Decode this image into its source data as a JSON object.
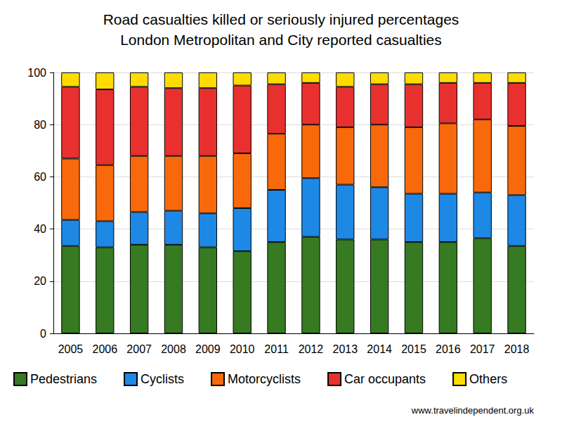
{
  "chart_data": {
    "type": "bar",
    "title": "Road casualties killed or seriously injured percentages",
    "subtitle": "London Metropolitan and City reported casualties",
    "annotations": [
      "www.travelindependent.org.uk"
    ],
    "categories": [
      "2005",
      "2006",
      "2007",
      "2008",
      "2009",
      "2010",
      "2011",
      "2012",
      "2013",
      "2014",
      "2015",
      "2016",
      "2017",
      "2018"
    ],
    "series": [
      {
        "name": "Pedestrians",
        "color": "#367a22",
        "values": [
          33.5,
          33,
          34,
          34,
          33,
          31.5,
          35,
          37,
          36,
          36,
          35,
          35,
          36.5,
          33.5
        ]
      },
      {
        "name": "Cyclists",
        "color": "#1e88e5",
        "values": [
          10,
          10,
          12.5,
          13,
          13,
          16.5,
          20,
          22.5,
          21,
          20,
          18.5,
          18.5,
          17.5,
          19.5
        ]
      },
      {
        "name": "Motorcyclists",
        "color": "#f8690c",
        "values": [
          23.5,
          21.5,
          21.5,
          21,
          22,
          21,
          21.5,
          20.5,
          22,
          24,
          25.5,
          27,
          28,
          26.5
        ]
      },
      {
        "name": "Car occupants",
        "color": "#e8312f",
        "values": [
          27.5,
          29,
          26.5,
          26,
          26,
          26,
          19,
          16,
          15.5,
          15.5,
          16.5,
          15.5,
          14,
          16.5
        ]
      },
      {
        "name": "Others",
        "color": "#ffdc00",
        "values": [
          5.5,
          6.5,
          5.5,
          6,
          6,
          5,
          4.5,
          4,
          5.5,
          4.5,
          4.5,
          4,
          4,
          4
        ]
      }
    ],
    "ylim": [
      0,
      100
    ],
    "yticks": [
      0,
      20,
      40,
      60,
      80,
      100
    ],
    "stacked": true,
    "grid": true,
    "legend": "bottom"
  }
}
